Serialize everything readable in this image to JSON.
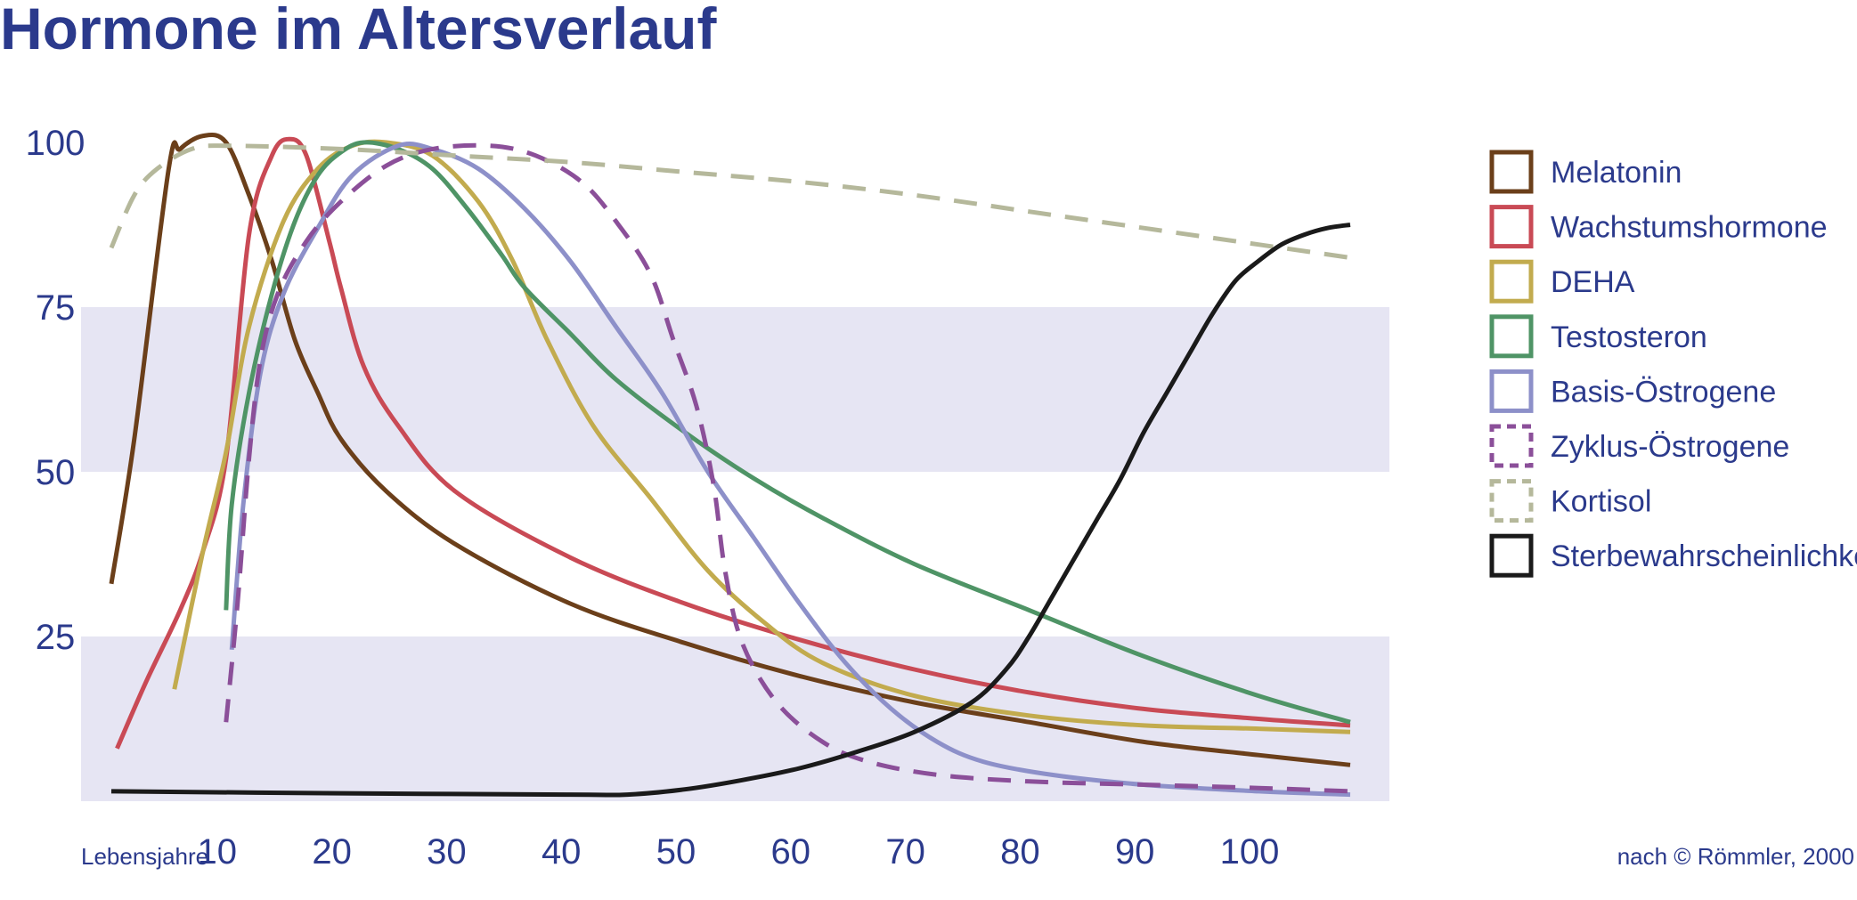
{
  "title": "Hormone im Altersverlauf",
  "source": "nach © Römmler, 2000",
  "chart_data": {
    "type": "line",
    "title": "Hormone im Altersverlauf",
    "xlabel": "Lebensjahre",
    "ylabel": "",
    "xlim": [
      0,
      108
    ],
    "ylim": [
      0,
      100
    ],
    "xticks": [
      10,
      20,
      30,
      40,
      50,
      60,
      70,
      80,
      90,
      100
    ],
    "yticks": [
      25,
      50,
      75,
      100
    ],
    "bands": [
      [
        0,
        25
      ],
      [
        50,
        75
      ]
    ],
    "band_color": "#e6e5f3",
    "grid": false,
    "legend_position": "right",
    "series": [
      {
        "name": "Melatonin",
        "color": "#6b3f1a",
        "dashed": false,
        "points": [
          [
            0,
            33
          ],
          [
            2,
            55
          ],
          [
            5,
            96
          ],
          [
            6,
            99
          ],
          [
            8,
            101
          ],
          [
            10,
            100
          ],
          [
            12,
            92
          ],
          [
            14,
            82
          ],
          [
            16,
            70
          ],
          [
            18,
            62
          ],
          [
            20,
            55
          ],
          [
            24,
            47
          ],
          [
            30,
            39
          ],
          [
            40,
            30
          ],
          [
            50,
            24
          ],
          [
            60,
            19
          ],
          [
            70,
            15
          ],
          [
            80,
            12
          ],
          [
            90,
            9
          ],
          [
            100,
            7
          ],
          [
            108,
            5.5
          ]
        ]
      },
      {
        "name": "Wachstumshormone",
        "color": "#c94a55",
        "dashed": false,
        "points": [
          [
            0.5,
            8
          ],
          [
            3,
            18
          ],
          [
            6,
            29
          ],
          [
            8,
            38
          ],
          [
            10,
            52
          ],
          [
            12,
            86
          ],
          [
            14,
            98
          ],
          [
            15.5,
            100.5
          ],
          [
            17,
            98
          ],
          [
            19,
            85
          ],
          [
            20,
            78
          ],
          [
            22,
            66
          ],
          [
            25,
            57
          ],
          [
            30,
            47
          ],
          [
            40,
            37
          ],
          [
            50,
            30
          ],
          [
            60,
            24.5
          ],
          [
            70,
            20
          ],
          [
            80,
            16.5
          ],
          [
            90,
            14
          ],
          [
            100,
            12.5
          ],
          [
            108,
            11.5
          ]
        ]
      },
      {
        "name": "DEHA",
        "color": "#c2ab4e",
        "dashed": false,
        "points": [
          [
            5.5,
            17
          ],
          [
            8,
            38
          ],
          [
            10,
            53
          ],
          [
            12,
            72
          ],
          [
            15,
            88
          ],
          [
            18,
            96
          ],
          [
            21,
            99.5
          ],
          [
            24,
            100
          ],
          [
            28,
            98
          ],
          [
            32,
            91
          ],
          [
            35,
            82
          ],
          [
            38,
            70
          ],
          [
            42,
            57
          ],
          [
            47,
            46
          ],
          [
            52,
            35
          ],
          [
            57,
            27
          ],
          [
            62,
            21
          ],
          [
            70,
            16
          ],
          [
            80,
            13
          ],
          [
            90,
            11.5
          ],
          [
            100,
            11
          ],
          [
            108,
            10.5
          ]
        ]
      },
      {
        "name": "Testosteron",
        "color": "#4f9466",
        "dashed": false,
        "points": [
          [
            10,
            29
          ],
          [
            10.5,
            45
          ],
          [
            12,
            62
          ],
          [
            14,
            77
          ],
          [
            16,
            88
          ],
          [
            18,
            95
          ],
          [
            20,
            98.5
          ],
          [
            22,
            100
          ],
          [
            25,
            99
          ],
          [
            28,
            96
          ],
          [
            31,
            90
          ],
          [
            34,
            83
          ],
          [
            36,
            78
          ],
          [
            40,
            71
          ],
          [
            44,
            64
          ],
          [
            50,
            56
          ],
          [
            56,
            49
          ],
          [
            62,
            43
          ],
          [
            70,
            36
          ],
          [
            80,
            29
          ],
          [
            90,
            22
          ],
          [
            100,
            16
          ],
          [
            108,
            12
          ]
        ]
      },
      {
        "name": "Basis-Östrogene",
        "color": "#8d90c9",
        "dashed": false,
        "points": [
          [
            10.5,
            23
          ],
          [
            11.5,
            45
          ],
          [
            13,
            65
          ],
          [
            15,
            77
          ],
          [
            18,
            87
          ],
          [
            21,
            95
          ],
          [
            25,
            99.5
          ],
          [
            28,
            99
          ],
          [
            32,
            96
          ],
          [
            36,
            90
          ],
          [
            40,
            82
          ],
          [
            44,
            72
          ],
          [
            48,
            62
          ],
          [
            52,
            50
          ],
          [
            56,
            40
          ],
          [
            60,
            30
          ],
          [
            64,
            21
          ],
          [
            68,
            14
          ],
          [
            72,
            9
          ],
          [
            76,
            6
          ],
          [
            82,
            4
          ],
          [
            90,
            2.5
          ],
          [
            100,
            1.5
          ],
          [
            108,
            1
          ]
        ]
      },
      {
        "name": "Zyklus-Östrogene",
        "color": "#8b4f99",
        "dashed": true,
        "points": [
          [
            10,
            12
          ],
          [
            11,
            30
          ],
          [
            12,
            52
          ],
          [
            13,
            67
          ],
          [
            14.5,
            77
          ],
          [
            17,
            85
          ],
          [
            20,
            91
          ],
          [
            24,
            96.5
          ],
          [
            28,
            99
          ],
          [
            33,
            99.5
          ],
          [
            37,
            98
          ],
          [
            41,
            94
          ],
          [
            44,
            88
          ],
          [
            47,
            80
          ],
          [
            49,
            70
          ],
          [
            51,
            60
          ],
          [
            52.5,
            48
          ],
          [
            53.5,
            35
          ],
          [
            55,
            24
          ],
          [
            58,
            15
          ],
          [
            62,
            9
          ],
          [
            66,
            6
          ],
          [
            72,
            4
          ],
          [
            80,
            3
          ],
          [
            90,
            2.5
          ],
          [
            100,
            2
          ],
          [
            108,
            1.5
          ]
        ]
      },
      {
        "name": "Kortisol",
        "color": "#b5b89b",
        "dashed": true,
        "points": [
          [
            0,
            84
          ],
          [
            2,
            92
          ],
          [
            4,
            96
          ],
          [
            7,
            99
          ],
          [
            10,
            99.5
          ],
          [
            20,
            99
          ],
          [
            30,
            98
          ],
          [
            40,
            97
          ],
          [
            50,
            95.5
          ],
          [
            60,
            94
          ],
          [
            70,
            92
          ],
          [
            80,
            89.5
          ],
          [
            90,
            87
          ],
          [
            100,
            84.5
          ],
          [
            108,
            82.5
          ]
        ]
      },
      {
        "name": "Sterbewahrscheinlichkeit",
        "color": "#1a1a1a",
        "dashed": false,
        "points": [
          [
            0,
            1.5
          ],
          [
            20,
            1.2
          ],
          [
            40,
            1
          ],
          [
            45,
            1
          ],
          [
            50,
            1.8
          ],
          [
            55,
            3.2
          ],
          [
            60,
            5
          ],
          [
            65,
            7.5
          ],
          [
            70,
            10.5
          ],
          [
            75,
            15
          ],
          [
            78,
            20
          ],
          [
            80,
            25
          ],
          [
            82,
            31
          ],
          [
            84,
            37
          ],
          [
            86,
            43
          ],
          [
            88,
            49
          ],
          [
            90,
            56
          ],
          [
            92,
            62
          ],
          [
            94,
            68
          ],
          [
            96,
            74
          ],
          [
            98,
            79
          ],
          [
            100,
            82
          ],
          [
            102,
            84.5
          ],
          [
            104,
            86
          ],
          [
            106,
            87
          ],
          [
            108,
            87.5
          ]
        ]
      }
    ]
  }
}
